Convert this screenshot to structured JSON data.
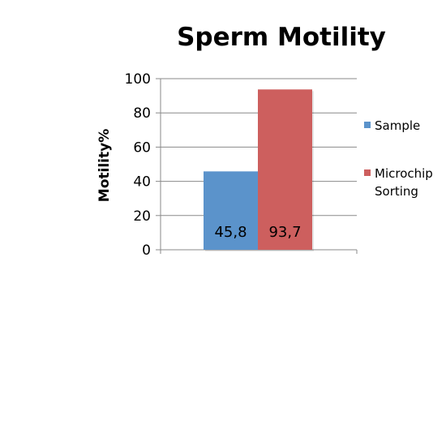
{
  "chart_data": {
    "type": "bar",
    "title": "Sperm Motility",
    "xlabel": "",
    "ylabel": "Motility%",
    "ylim": [
      0,
      100
    ],
    "yticks": [
      0,
      20,
      40,
      60,
      80,
      100
    ],
    "grid": true,
    "legend_position": "right",
    "series": [
      {
        "name": "Sample",
        "value": 45.8,
        "label": "45,8",
        "color": "#5b93cb"
      },
      {
        "name": "Microchip\nSorting",
        "value": 93.7,
        "label": "93,7",
        "color": "#cd5f5e"
      }
    ]
  }
}
